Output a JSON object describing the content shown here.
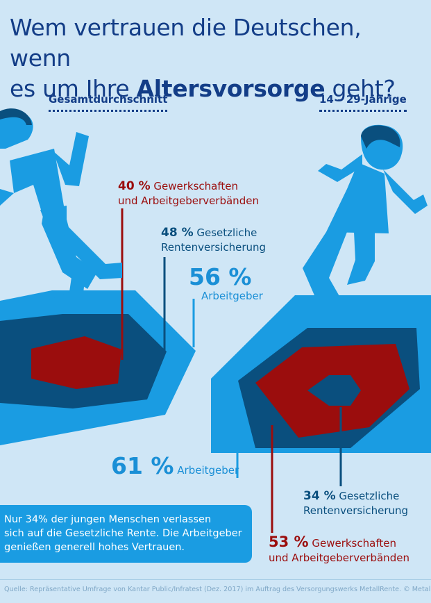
{
  "title": {
    "line1": "Wem vertrauen die Deutschen, wenn",
    "line2_pre": "es um Ihre ",
    "line2_bold": "Altersvorsorge",
    "line2_post": " geht?"
  },
  "left_column": {
    "heading": "Gesamtdurchschnitt",
    "gewerkschaften": {
      "pct": "40 %",
      "line1": "Gewerkschaften",
      "line2": "und Arbeitgeberverbänden"
    },
    "rentenversicherung": {
      "pct": "48 %",
      "line1": "Gesetzliche",
      "line2": "Rentenversicherung"
    },
    "arbeitgeber": {
      "pct": "56 %",
      "label": "Arbeitgeber"
    }
  },
  "right_column": {
    "heading": "14 – 29-Jährige",
    "arbeitgeber": {
      "pct": "61 %",
      "label": "Arbeitgeber"
    },
    "rentenversicherung": {
      "pct": "34 %",
      "line1": "Gesetzliche",
      "line2": "Rentenversicherung"
    },
    "gewerkschaften": {
      "pct": "53 %",
      "line1": "Gewerkschaften",
      "line2": "und Arbeitgeberverbänden"
    }
  },
  "note": {
    "line1": "Nur 34% der jungen Menschen verlassen",
    "line2": "sich auf die Gesetzliche Rente. Die Arbeitgeber",
    "line3": "genießen generell hohes Vertrauen."
  },
  "footer": "Quelle: Repräsentative Umfrage von Kantar Public/Infratest (Dez. 2017) im Auftrag des Versorgungswerks MetallRente. © MetallRente",
  "colors": {
    "background": "#cfe6f6",
    "title": "#133d87",
    "cyan": "#1a9ce2",
    "navy": "#0a4f7e",
    "red": "#9b0d0d"
  },
  "icons": [
    "man-figure-icon",
    "woman-figure-icon"
  ]
}
